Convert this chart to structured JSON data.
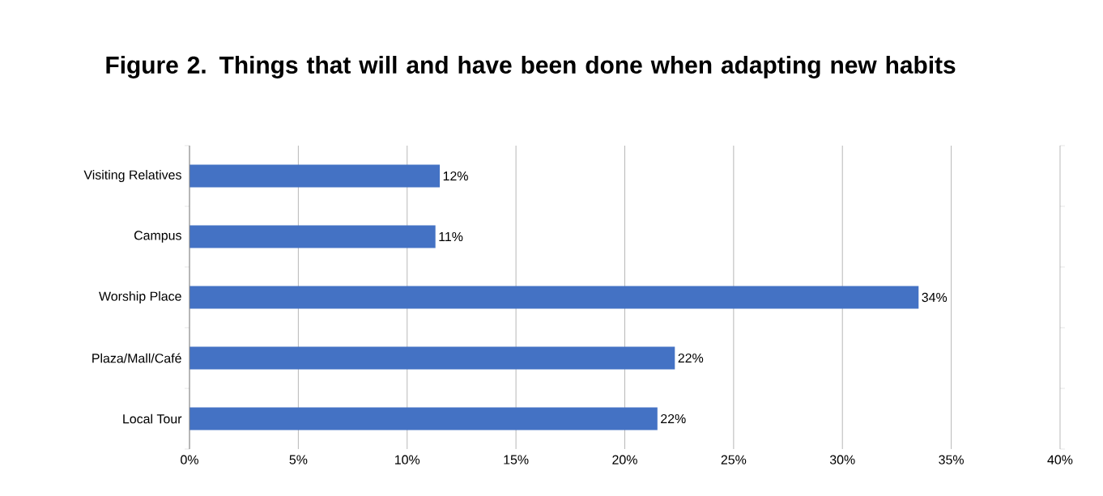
{
  "chart_data": {
    "type": "bar",
    "orientation": "horizontal",
    "title": "Figure 2. Things that will and have been done when adapting new habits",
    "categories": [
      "Visiting Relatives",
      "Campus",
      "Worship Place",
      "Plaza/Mall/Café",
      "Local Tour"
    ],
    "values": [
      11.5,
      11.3,
      33.5,
      22.3,
      21.5
    ],
    "value_labels": [
      "12%",
      "11%",
      "34%",
      "22%",
      "22%"
    ],
    "color": "#4472c4",
    "xlim": [
      0,
      40
    ],
    "xticks": [
      {
        "value": 0,
        "label": "0%"
      },
      {
        "value": 5,
        "label": "5%"
      },
      {
        "value": 10,
        "label": "10%"
      },
      {
        "value": 15,
        "label": "15%"
      },
      {
        "value": 20,
        "label": "20%"
      },
      {
        "value": 25,
        "label": "25%"
      },
      {
        "value": 30,
        "label": "30%"
      },
      {
        "value": 35,
        "label": "35%"
      },
      {
        "value": 40,
        "label": "40%"
      }
    ],
    "grid": "x"
  }
}
